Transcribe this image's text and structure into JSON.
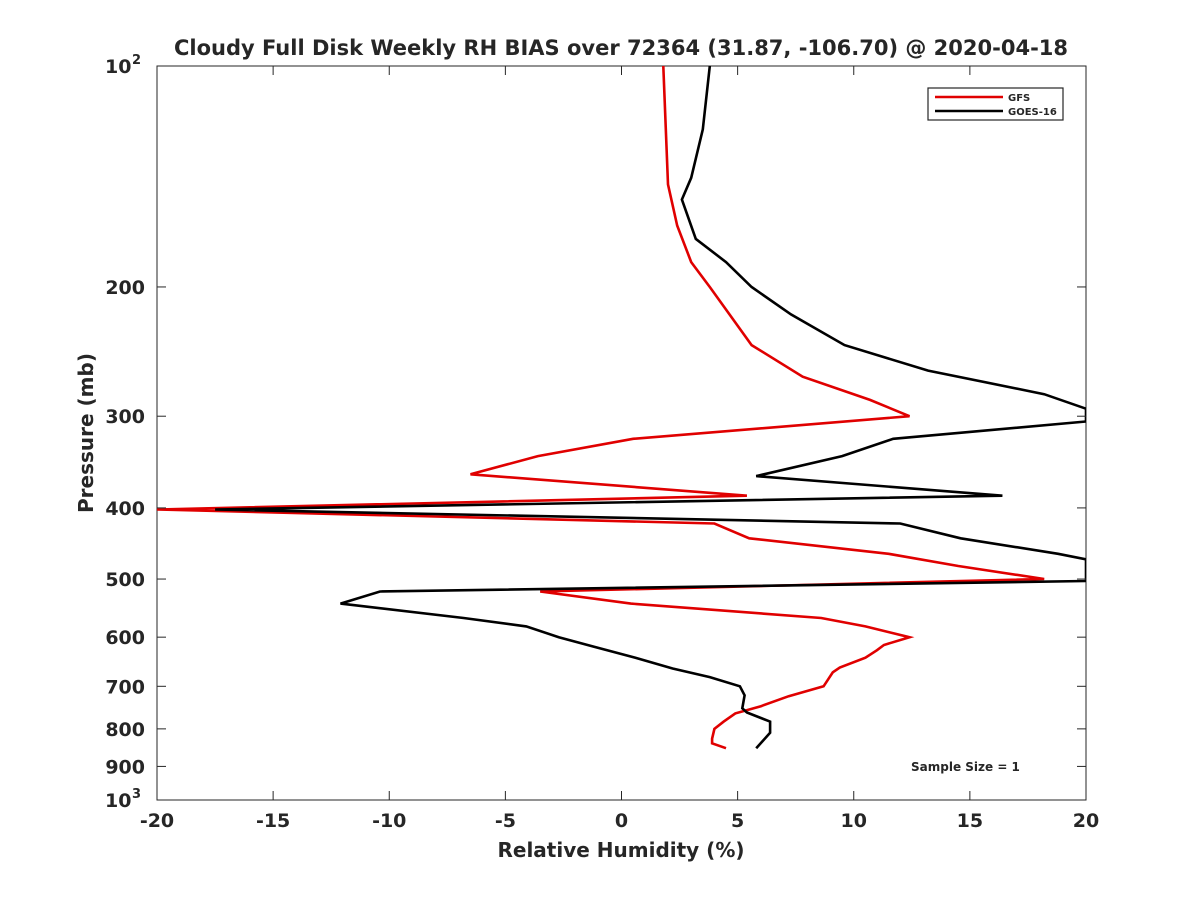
{
  "chart_data": {
    "type": "line",
    "title": "Cloudy Full Disk Weekly RH BIAS over 72364 (31.87, -106.70) @ 2020-04-18",
    "xlabel": "Relative Humidity (%)",
    "ylabel": "Pressure (mb)",
    "xlim": [
      -20,
      20
    ],
    "ylim": [
      100,
      1000
    ],
    "y_scale": "log",
    "y_reversed": true,
    "xticks": [
      -20,
      -15,
      -10,
      -5,
      0,
      5,
      10,
      15,
      20
    ],
    "xtick_labels": [
      "-20",
      "-15",
      "-10",
      "-5",
      "0",
      "5",
      "10",
      "15",
      "20"
    ],
    "yticks": [
      200,
      300,
      400,
      500,
      600,
      700,
      800,
      900
    ],
    "ytick_labels": [
      "200",
      "300",
      "400",
      "500",
      "600",
      "700",
      "800",
      "900"
    ],
    "ytick_top": {
      "base": "10",
      "exp": "2"
    },
    "ytick_bottom": {
      "base": "10",
      "exp": "3"
    },
    "grid": false,
    "legend_position": "top-right",
    "annotation": "Sample Size = 1",
    "series": [
      {
        "name": "GFS",
        "color": "#e00000",
        "x": [
          1.8,
          2.0,
          2.4,
          3.0,
          3.8,
          5.6,
          7.8,
          10.7,
          12.4,
          0.5,
          -3.6,
          -6.5,
          5.4,
          -20.0,
          4.0,
          5.5,
          11.5,
          14.5,
          18.2,
          -3.5,
          0.4,
          8.6,
          10.5,
          12.4,
          11.3,
          11.0,
          10.5,
          9.4,
          9.1,
          8.7,
          7.2,
          6.0,
          4.9,
          4.4,
          4.0,
          3.9,
          3.9,
          4.5
        ],
        "y": [
          100,
          145,
          165,
          185,
          200,
          240,
          265,
          285,
          300,
          322,
          340,
          360,
          385,
          402,
          420,
          440,
          462,
          480,
          500,
          520,
          540,
          565,
          580,
          600,
          615,
          625,
          640,
          660,
          670,
          700,
          722,
          745,
          762,
          782,
          800,
          825,
          837,
          850
        ]
      },
      {
        "name": "GOES-16",
        "color": "#000000",
        "x": [
          3.8,
          3.5,
          3.0,
          2.6,
          3.2,
          4.5,
          5.6,
          7.3,
          9.6,
          13.2,
          18.2,
          20.0,
          20.0,
          11.7,
          9.5,
          5.8,
          16.4,
          -17.5,
          12.0,
          14.6,
          18.8,
          20.0,
          20.0,
          -10.4,
          -12.1,
          -6.8,
          -4.1,
          -2.7,
          -1.2,
          0.6,
          2.2,
          3.8,
          5.1,
          5.3,
          5.2,
          5.4,
          6.4,
          6.4,
          5.8
        ],
        "y": [
          100,
          122,
          142,
          152,
          172,
          185,
          200,
          218,
          240,
          260,
          280,
          293,
          305,
          322,
          340,
          362,
          385,
          402,
          420,
          440,
          462,
          470,
          503,
          520,
          540,
          565,
          580,
          600,
          618,
          640,
          662,
          680,
          700,
          720,
          750,
          760,
          782,
          810,
          850
        ]
      }
    ]
  }
}
